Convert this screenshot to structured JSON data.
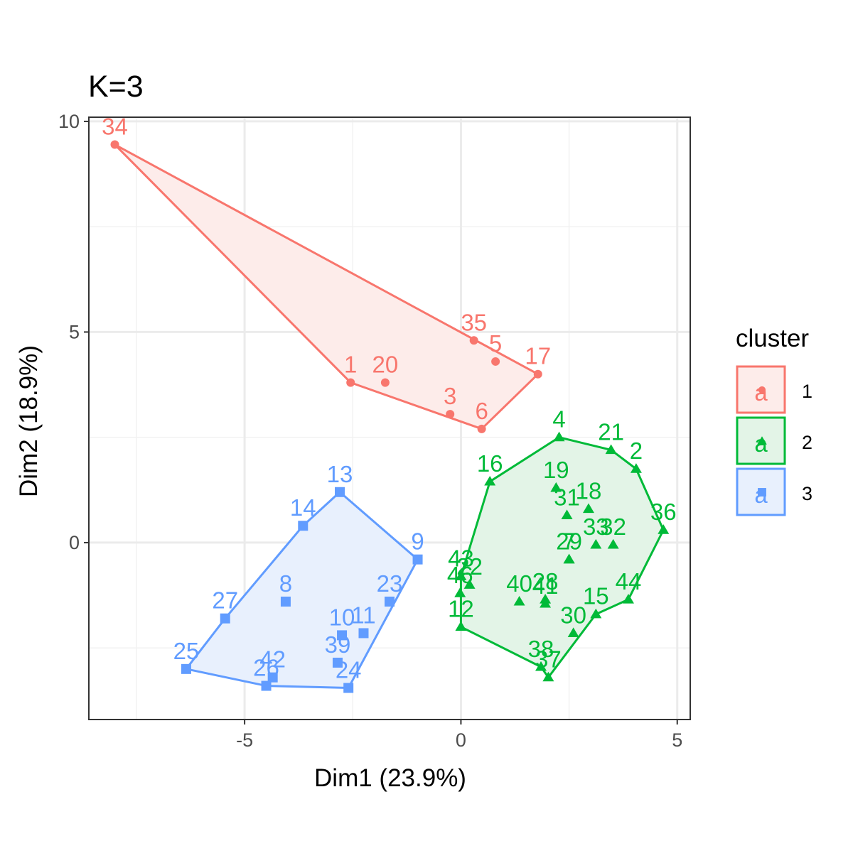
{
  "chart_data": {
    "type": "scatter",
    "title": "K=3",
    "xlabel": "Dim1 (23.9%)",
    "ylabel": "Dim2 (18.9%)",
    "xlim": [
      -8.6,
      5.3
    ],
    "ylim": [
      -4.2,
      10.1
    ],
    "xticks": [
      -5,
      0,
      5
    ],
    "yticks": [
      0,
      5,
      10
    ],
    "xtick_labels": [
      "-5",
      "0",
      "5"
    ],
    "ytick_labels": [
      "0",
      "5",
      "10"
    ],
    "grid": true,
    "legend": {
      "title": "cluster",
      "position": "right"
    },
    "series": [
      {
        "name": "1",
        "color": "#F8766D",
        "fill": "#FDECEA",
        "marker": "circle",
        "points": [
          {
            "label": "34",
            "x": -8.0,
            "y": 9.45
          },
          {
            "label": "35",
            "x": 0.3,
            "y": 4.8
          },
          {
            "label": "5",
            "x": 0.8,
            "y": 4.3
          },
          {
            "label": "17",
            "x": 1.78,
            "y": 4.0
          },
          {
            "label": "1",
            "x": -2.55,
            "y": 3.8
          },
          {
            "label": "20",
            "x": -1.75,
            "y": 3.8
          },
          {
            "label": "3",
            "x": -0.25,
            "y": 3.05
          },
          {
            "label": "6",
            "x": 0.48,
            "y": 2.7
          }
        ],
        "hull": [
          "34",
          "17",
          "6",
          "1"
        ]
      },
      {
        "name": "2",
        "color": "#00BA38",
        "fill": "#E3F4E7",
        "marker": "triangle",
        "points": [
          {
            "label": "4",
            "x": 2.27,
            "y": 2.5
          },
          {
            "label": "21",
            "x": 3.47,
            "y": 2.2
          },
          {
            "label": "2",
            "x": 4.05,
            "y": 1.75
          },
          {
            "label": "16",
            "x": 0.67,
            "y": 1.45
          },
          {
            "label": "19",
            "x": 2.2,
            "y": 1.3
          },
          {
            "label": "31",
            "x": 2.45,
            "y": 0.65
          },
          {
            "label": "18",
            "x": 2.95,
            "y": 0.8
          },
          {
            "label": "36",
            "x": 4.68,
            "y": 0.3
          },
          {
            "label": "33",
            "x": 3.12,
            "y": -0.05
          },
          {
            "label": "32",
            "x": 3.52,
            "y": -0.05
          },
          {
            "label": "29",
            "x": 2.5,
            "y": -0.4
          },
          {
            "label": "7",
            "x": 2.5,
            "y": -0.4
          },
          {
            "label": "43",
            "x": 0.0,
            "y": -0.8
          },
          {
            "label": "22",
            "x": 0.2,
            "y": -1.0
          },
          {
            "label": "46",
            "x": -0.02,
            "y": -1.2
          },
          {
            "label": "12",
            "x": 0.0,
            "y": -2.0
          },
          {
            "label": "40",
            "x": 1.35,
            "y": -1.4
          },
          {
            "label": "28",
            "x": 1.95,
            "y": -1.35
          },
          {
            "label": "41",
            "x": 1.95,
            "y": -1.45
          },
          {
            "label": "15",
            "x": 3.12,
            "y": -1.7
          },
          {
            "label": "44",
            "x": 3.87,
            "y": -1.35
          },
          {
            "label": "30",
            "x": 2.6,
            "y": -2.15
          },
          {
            "label": "38",
            "x": 1.85,
            "y": -2.95
          },
          {
            "label": "37",
            "x": 2.02,
            "y": -3.2
          }
        ],
        "hull": [
          "4",
          "21",
          "2",
          "36",
          "44",
          "15",
          "37",
          "38",
          "12",
          "43",
          "16"
        ]
      },
      {
        "name": "3",
        "color": "#619CFF",
        "fill": "#E8F0FD",
        "marker": "square",
        "points": [
          {
            "label": "13",
            "x": -2.8,
            "y": 1.2
          },
          {
            "label": "14",
            "x": -3.65,
            "y": 0.4
          },
          {
            "label": "9",
            "x": -1.0,
            "y": -0.4
          },
          {
            "label": "8",
            "x": -4.05,
            "y": -1.4
          },
          {
            "label": "23",
            "x": -1.65,
            "y": -1.4
          },
          {
            "label": "27",
            "x": -5.45,
            "y": -1.8
          },
          {
            "label": "10",
            "x": -2.75,
            "y": -2.2
          },
          {
            "label": "11",
            "x": -2.25,
            "y": -2.15
          },
          {
            "label": "39",
            "x": -2.85,
            "y": -2.85
          },
          {
            "label": "24",
            "x": -2.6,
            "y": -3.45
          },
          {
            "label": "25",
            "x": -6.35,
            "y": -3.0
          },
          {
            "label": "42",
            "x": -4.35,
            "y": -3.2
          },
          {
            "label": "26",
            "x": -4.5,
            "y": -3.4
          }
        ],
        "hull": [
          "13",
          "9",
          "24",
          "26",
          "25",
          "27",
          "14"
        ]
      }
    ]
  }
}
